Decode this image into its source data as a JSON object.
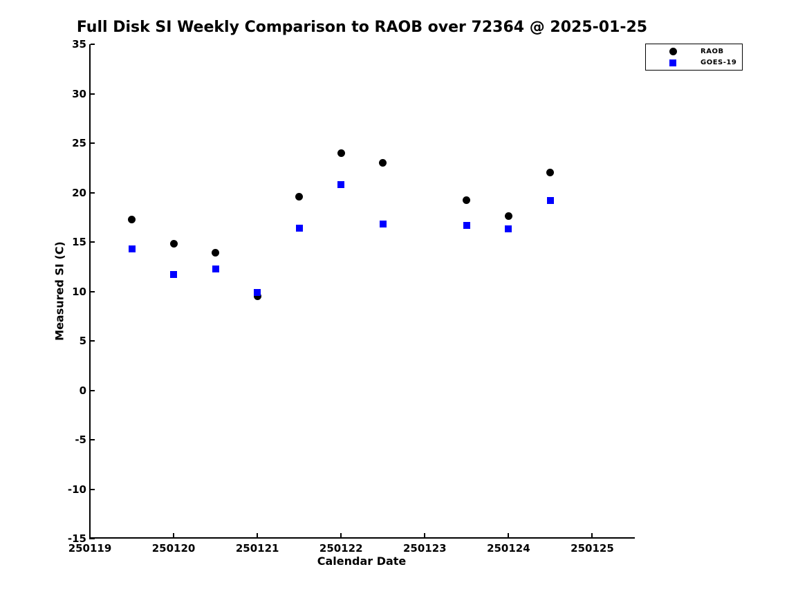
{
  "title": "Full Disk SI Weekly Comparison to RAOB over 72364 @ 2025-01-25",
  "chart_data": {
    "type": "scatter",
    "title": "Full Disk SI Weekly Comparison to RAOB over 72364 @ 2025-01-25",
    "xlabel": "Calendar Date",
    "ylabel": "Measured SI (C)",
    "xlim": [
      250119,
      250125.5
    ],
    "ylim": [
      -15,
      35
    ],
    "xticks": [
      250119,
      250120,
      250121,
      250122,
      250123,
      250124,
      250125
    ],
    "yticks": [
      -15,
      -10,
      -5,
      0,
      5,
      10,
      15,
      20,
      25,
      30,
      35
    ],
    "grid": false,
    "legend_position": "top-right-outside",
    "x": [
      250119.5,
      250120,
      250120.5,
      250121,
      250121.5,
      250122,
      250122.5,
      250123.5,
      250124,
      250124.5
    ],
    "series": [
      {
        "name": "RAOB",
        "marker": "circle",
        "color": "#000000",
        "values": [
          17.3,
          14.8,
          13.9,
          9.5,
          19.6,
          24.0,
          23.0,
          19.2,
          17.6,
          22.0
        ]
      },
      {
        "name": "GOES-19",
        "marker": "square",
        "color": "#0000ff",
        "values": [
          14.3,
          11.7,
          12.3,
          9.9,
          16.4,
          20.8,
          16.8,
          16.7,
          16.3,
          19.2
        ]
      }
    ]
  }
}
